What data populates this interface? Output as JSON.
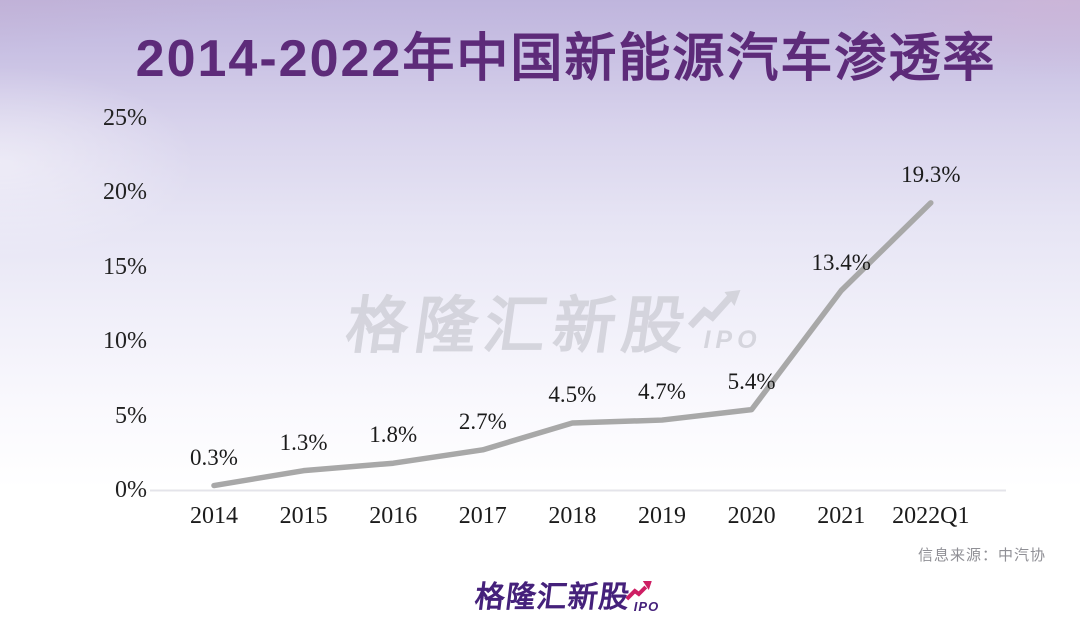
{
  "title": "2014-2022年中国新能源汽车渗透率",
  "watermark": {
    "brand": "格隆汇新股",
    "sub": "IPO"
  },
  "footer": {
    "brand": "格隆汇新股",
    "sub": "IPO"
  },
  "source": "信息来源：中汽协",
  "colors": {
    "title_purple": "#5d2b79",
    "line_gray": "#a8a8a8",
    "label_ink": "#1b1b1b",
    "axis_ink": "#222222",
    "watermark_gray": "#d2d2da",
    "brand_purple": "#45217b",
    "brand_magenta": "#ce1e63",
    "source_gray": "#8f8f95",
    "baseline_gray": "#e4e4ea"
  },
  "chart_data": {
    "type": "line",
    "title": "2014-2022年中国新能源汽车渗透率",
    "categories": [
      "2014",
      "2015",
      "2016",
      "2017",
      "2018",
      "2019",
      "2020",
      "2021",
      "2022Q1"
    ],
    "values": [
      0.3,
      1.3,
      1.8,
      2.7,
      4.5,
      4.7,
      5.4,
      13.4,
      19.3
    ],
    "point_labels": [
      "0.3%",
      "1.3%",
      "1.8%",
      "2.7%",
      "4.5%",
      "4.7%",
      "5.4%",
      "13.4%",
      "19.3%"
    ],
    "y_ticks": [
      "25%",
      "20%",
      "15%",
      "10%",
      "5%",
      "0%"
    ],
    "ylim": [
      0,
      25
    ],
    "xlabel": "",
    "ylabel": "",
    "grid": false,
    "legend_position": "none",
    "markers": false,
    "line_color": "#a8a8a8",
    "source": "信息来源：中汽协"
  }
}
